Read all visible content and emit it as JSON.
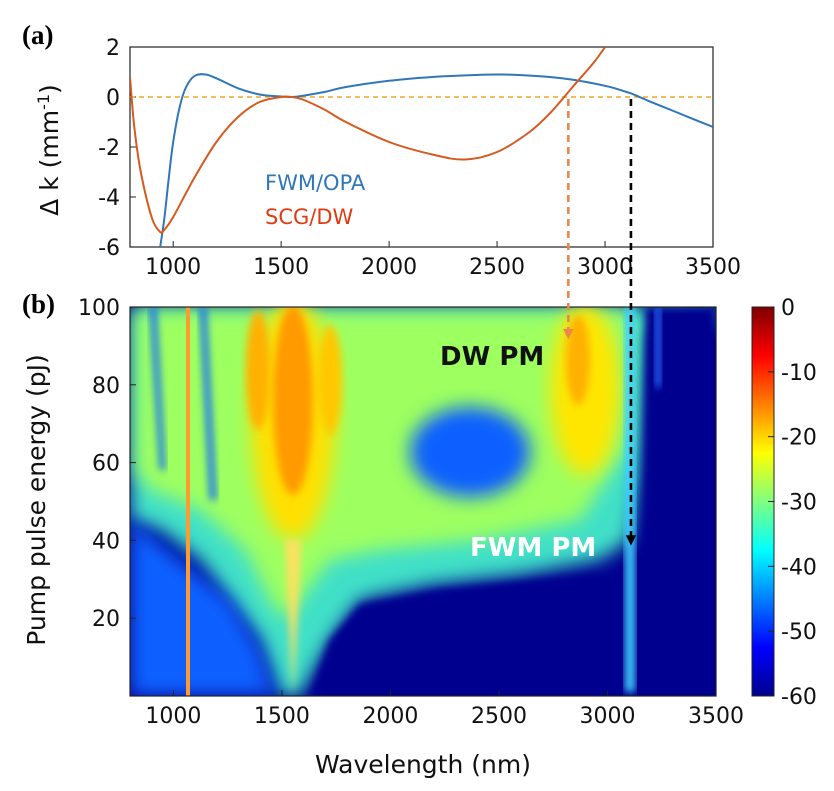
{
  "colors": {
    "blue": "#2f77b8",
    "orange": "#d65a1f",
    "zero_line": "#f2a52a",
    "dw_arrow": "#e8884a",
    "fwm_arrow": "#000000",
    "dw_pm_text": "#111111",
    "fwm_pm_text": "#ffffff"
  },
  "chart_data": [
    {
      "id": "a",
      "panel_label": "(a)",
      "type": "line",
      "xlabel": "",
      "ylabel": "Δ k (mm",
      "ylabel_sup": "-1",
      "ylabel_tail": ")",
      "xlim": [
        800,
        3500
      ],
      "ylim": [
        -6,
        2
      ],
      "xticks": [
        1000,
        1500,
        2000,
        2500,
        3000,
        3500
      ],
      "yticks": [
        2,
        0,
        -2,
        -4,
        -6
      ],
      "reference_line_y": 0,
      "series": [
        {
          "name": "FWM/OPA",
          "color": "#2f77b8",
          "x": [
            940,
            960,
            980,
            1000,
            1030,
            1060,
            1100,
            1150,
            1200,
            1300,
            1400,
            1500,
            1550,
            1600,
            1700,
            1800,
            2000,
            2200,
            2400,
            2500,
            2600,
            2800,
            3000,
            3100,
            3120,
            3200,
            3300,
            3400,
            3500
          ],
          "y": [
            -6,
            -4.8,
            -3.2,
            -1.8,
            -0.4,
            0.4,
            0.85,
            0.9,
            0.75,
            0.35,
            0.1,
            0.02,
            0.0,
            0.05,
            0.2,
            0.4,
            0.65,
            0.8,
            0.88,
            0.9,
            0.88,
            0.75,
            0.45,
            0.2,
            0.15,
            -0.15,
            -0.5,
            -0.85,
            -1.2
          ]
        },
        {
          "name": "SCG/DW",
          "color": "#d65a1f",
          "x": [
            800,
            820,
            850,
            900,
            940,
            960,
            1000,
            1100,
            1200,
            1300,
            1400,
            1500,
            1550,
            1600,
            1700,
            1800,
            2000,
            2200,
            2350,
            2500,
            2650,
            2750,
            2850,
            2950,
            3000
          ],
          "y": [
            0.8,
            -1.2,
            -3.0,
            -4.8,
            -5.4,
            -5.3,
            -4.8,
            -3.2,
            -1.8,
            -0.8,
            -0.2,
            0.0,
            0.0,
            -0.1,
            -0.5,
            -1.0,
            -1.8,
            -2.3,
            -2.5,
            -2.2,
            -1.4,
            -0.6,
            0.4,
            1.4,
            2.0
          ]
        }
      ],
      "legend": [
        "FWM/OPA",
        "SCG/DW"
      ]
    },
    {
      "id": "b",
      "panel_label": "(b)",
      "type": "heatmap",
      "xlabel": "Wavelength (nm)",
      "ylabel": "Pump pulse energy (pJ)",
      "xlim": [
        800,
        3500
      ],
      "ylim": [
        0,
        100
      ],
      "xticks": [
        1000,
        1500,
        2000,
        2500,
        3000,
        3500
      ],
      "yticks": [
        100,
        80,
        60,
        40,
        20
      ],
      "colorbar": {
        "range": [
          -60,
          0
        ],
        "ticks": [
          0,
          -10,
          -20,
          -30,
          -40,
          -50,
          -60
        ],
        "colormap": "jet"
      },
      "annotations": [
        {
          "text": "DW PM",
          "x_nm": 2820,
          "y_pj": 88
        },
        {
          "text": "FWM PM",
          "x_nm": 2580,
          "y_pj": 39
        }
      ],
      "pm_arrows": [
        {
          "name": "dw-pm",
          "x_nm": 2830,
          "from": "(a) zero crossing",
          "to_y_pj": 93
        },
        {
          "name": "fwm-pm",
          "x_nm": 3120,
          "from": "(a) zero crossing",
          "to_y_pj": 40
        }
      ]
    }
  ]
}
